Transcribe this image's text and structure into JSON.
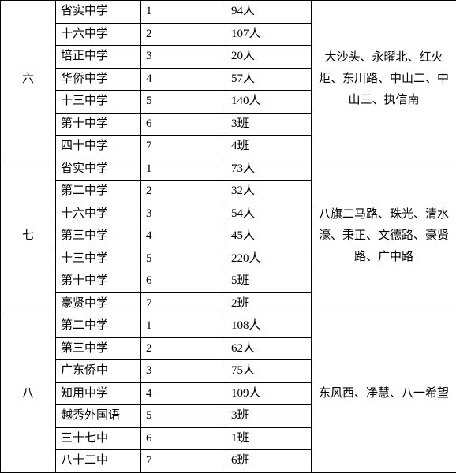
{
  "groups": [
    {
      "id": "六",
      "schools": [
        {
          "name": "省实中学",
          "order": "1",
          "count": "94人"
        },
        {
          "name": "十六中学",
          "order": "2",
          "count": "107人"
        },
        {
          "name": "培正中学",
          "order": "3",
          "count": "20人"
        },
        {
          "name": "华侨中学",
          "order": "4",
          "count": "57人"
        },
        {
          "name": "十三中学",
          "order": "5",
          "count": "140人"
        },
        {
          "name": "第十中学",
          "order": "6",
          "count": "3班"
        },
        {
          "name": "四十中学",
          "order": "7",
          "count": "4班"
        }
      ],
      "area": "大沙头、永曜北、红火炬、东川路、中山二、中山三、执信南"
    },
    {
      "id": "七",
      "schools": [
        {
          "name": "省实中学",
          "order": "1",
          "count": "73人"
        },
        {
          "name": "第二中学",
          "order": "2",
          "count": "32人"
        },
        {
          "name": "十六中学",
          "order": "3",
          "count": "54人"
        },
        {
          "name": "第三中学",
          "order": "4",
          "count": "45人"
        },
        {
          "name": "十三中学",
          "order": "5",
          "count": "220人"
        },
        {
          "name": "第十中学",
          "order": "6",
          "count": "5班"
        },
        {
          "name": "豪贤中学",
          "order": "7",
          "count": "2班"
        }
      ],
      "area": "八旗二马路、珠光、清水濠、秉正、文德路、豪贤路、广中路"
    },
    {
      "id": "八",
      "schools": [
        {
          "name": "第二中学",
          "order": "1",
          "count": "108人"
        },
        {
          "name": "第三中学",
          "order": "2",
          "count": "62人"
        },
        {
          "name": "广东侨中",
          "order": "3",
          "count": "75人"
        },
        {
          "name": "知用中学",
          "order": "4",
          "count": "109人"
        },
        {
          "name": "越秀外国语",
          "order": "5",
          "count": "3班"
        },
        {
          "name": "三十七中",
          "order": "6",
          "count": "1班"
        },
        {
          "name": "八十二中",
          "order": "7",
          "count": "6班"
        }
      ],
      "area": "东风西、净慧、八一希望"
    }
  ]
}
